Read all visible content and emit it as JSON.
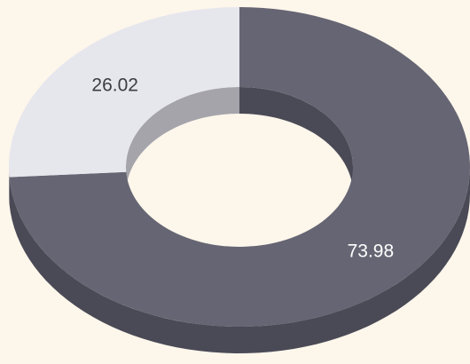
{
  "chart_data": {
    "type": "pie",
    "variant": "donut-3d",
    "title": "",
    "categories": [
      "",
      ""
    ],
    "values": [
      73.98,
      26.02
    ],
    "labels": [
      "73.98",
      "26.02"
    ],
    "start_angle_deg": 0,
    "direction": "clockwise",
    "legend": "none"
  },
  "colors": {
    "background": "#fdf6eb",
    "slice_0_top": "#666573",
    "slice_0_side": "#4a4a56",
    "slice_1_top": "#e6e6ed",
    "slice_1_side": "#a5a4ab",
    "label_on_dark": "#ffffff",
    "label_on_light": "#3c3c44"
  }
}
